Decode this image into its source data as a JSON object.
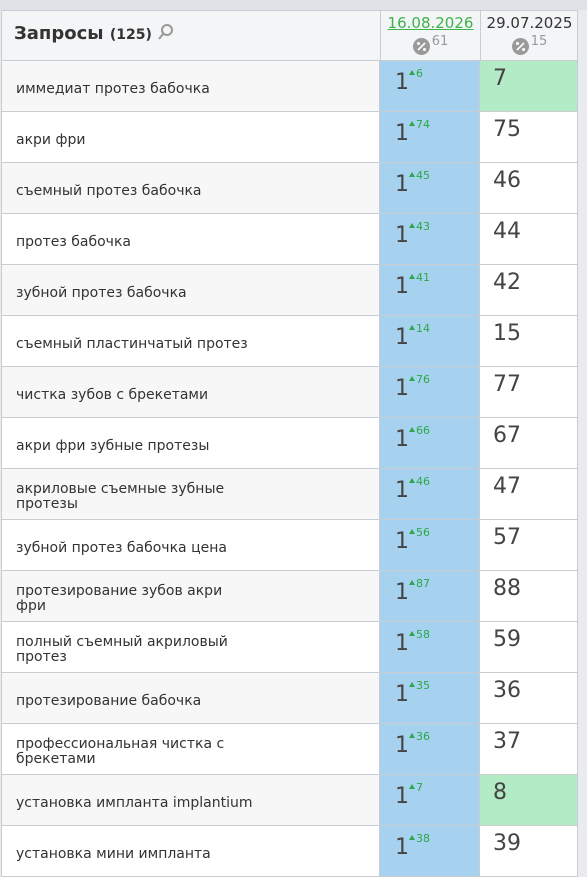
{
  "header": {
    "title": "Запросы",
    "count": "(125)",
    "columns": [
      {
        "date": "16.08.2026",
        "percent": 61,
        "link": true
      },
      {
        "date": "29.07.2025",
        "percent": 15,
        "link": false
      }
    ]
  },
  "rows": [
    {
      "query": "иммедиат протез бабочка",
      "position": 1,
      "delta": 6,
      "previous": 7,
      "highlight": true
    },
    {
      "query": "акри фри",
      "position": 1,
      "delta": 74,
      "previous": 75,
      "highlight": false
    },
    {
      "query": "съемный протез бабочка",
      "position": 1,
      "delta": 45,
      "previous": 46,
      "highlight": false
    },
    {
      "query": "протез бабочка",
      "position": 1,
      "delta": 43,
      "previous": 44,
      "highlight": false
    },
    {
      "query": "зубной протез бабочка",
      "position": 1,
      "delta": 41,
      "previous": 42,
      "highlight": false
    },
    {
      "query": "съемный пластинчатый протез",
      "position": 1,
      "delta": 14,
      "previous": 15,
      "highlight": false
    },
    {
      "query": "чистка зубов с брекетами",
      "position": 1,
      "delta": 76,
      "previous": 77,
      "highlight": false
    },
    {
      "query": "акри фри зубные протезы",
      "position": 1,
      "delta": 66,
      "previous": 67,
      "highlight": false
    },
    {
      "query": "акриловые съемные зубные протезы",
      "position": 1,
      "delta": 46,
      "previous": 47,
      "highlight": false
    },
    {
      "query": "зубной протез бабочка цена",
      "position": 1,
      "delta": 56,
      "previous": 57,
      "highlight": false
    },
    {
      "query": "протезирование зубов акри фри",
      "position": 1,
      "delta": 87,
      "previous": 88,
      "highlight": false
    },
    {
      "query": "полный съемный акриловый протез",
      "position": 1,
      "delta": 58,
      "previous": 59,
      "highlight": false
    },
    {
      "query": "протезирование бабочка",
      "position": 1,
      "delta": 35,
      "previous": 36,
      "highlight": false
    },
    {
      "query": "профессиональная чистка с брекетами",
      "position": 1,
      "delta": 36,
      "previous": 37,
      "highlight": false
    },
    {
      "query": "установка импланта implantium",
      "position": 1,
      "delta": 7,
      "previous": 8,
      "highlight": true
    },
    {
      "query": "установка мини импланта",
      "position": 1,
      "delta": 38,
      "previous": 39,
      "highlight": false
    }
  ]
}
